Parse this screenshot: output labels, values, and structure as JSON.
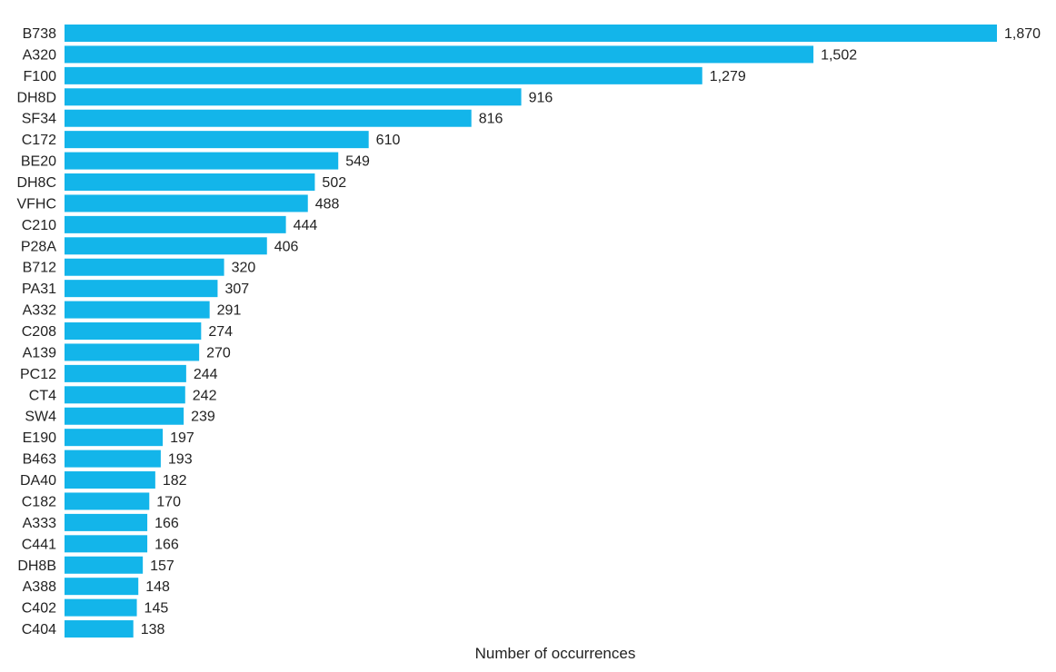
{
  "chart_data": {
    "type": "bar",
    "orientation": "horizontal",
    "title": "",
    "xlabel": "Number of occurrences",
    "ylabel": "",
    "bar_color": "#13b5ea",
    "xlim": [
      0,
      1870
    ],
    "grid": false,
    "categories": [
      "B738",
      "A320",
      "F100",
      "DH8D",
      "SF34",
      "C172",
      "BE20",
      "DH8C",
      "VFHC",
      "C210",
      "P28A",
      "B712",
      "PA31",
      "A332",
      "C208",
      "A139",
      "PC12",
      "CT4",
      "SW4",
      "E190",
      "B463",
      "DA40",
      "C182",
      "A333",
      "C441",
      "DH8B",
      "A388",
      "C402",
      "C404"
    ],
    "values": [
      1870,
      1502,
      1279,
      916,
      816,
      610,
      549,
      502,
      488,
      444,
      406,
      320,
      307,
      291,
      274,
      270,
      244,
      242,
      239,
      197,
      193,
      182,
      170,
      166,
      166,
      157,
      148,
      145,
      138
    ],
    "value_labels": [
      "1,870",
      "1,502",
      "1,279",
      "916",
      "816",
      "610",
      "549",
      "502",
      "488",
      "444",
      "406",
      "320",
      "307",
      "291",
      "274",
      "270",
      "244",
      "242",
      "239",
      "197",
      "193",
      "182",
      "170",
      "166",
      "166",
      "157",
      "148",
      "145",
      "138"
    ]
  }
}
